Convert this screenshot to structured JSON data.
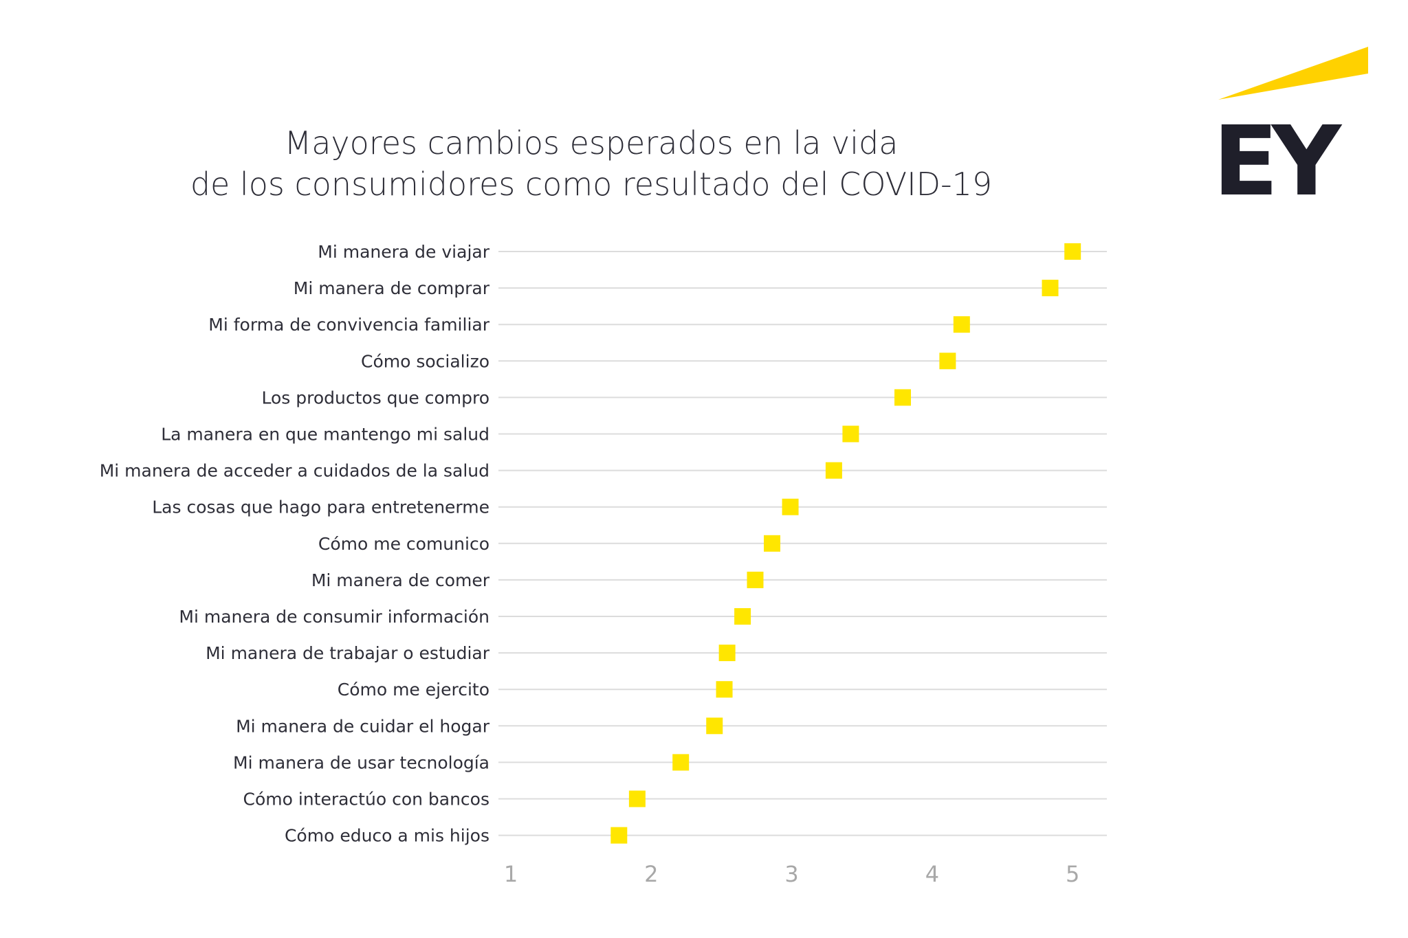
{
  "logo_text": "EY",
  "colors": {
    "marker": "#FFE600",
    "logo_beam": "#FFD100",
    "logo_text": "#1F1F2A",
    "grid": "#DCDCDC",
    "tick": "#A8A8A8",
    "text": "#2E2E38"
  },
  "chart_data": {
    "type": "scatter",
    "title": [
      "Mayores cambios esperados en la vida",
      "de los consumidores como resultado del COVID-19"
    ],
    "xlabel": "",
    "ylabel": "",
    "xlim": [
      1,
      5
    ],
    "xticks": [
      "1",
      "2",
      "3",
      "4",
      "5"
    ],
    "grid": true,
    "categories": [
      "Mi manera de viajar",
      "Mi manera de comprar",
      "Mi forma de convivencia familiar",
      "Cómo socializo",
      "Los productos que compro",
      "La manera en que mantengo mi salud",
      "Mi manera de acceder a cuidados de la salud",
      "Las cosas que hago para entretenerme",
      "Cómo me comunico",
      "Mi manera de comer",
      "Mi manera de consumir información",
      "Mi manera de trabajar o estudiar",
      "Cómo me ejercito",
      "Mi manera de cuidar el hogar",
      "Mi manera de usar tecnología",
      "Cómo interactúo con bancos",
      "Cómo educo a mis hijos"
    ],
    "values": [
      5.0,
      4.84,
      4.21,
      4.11,
      3.79,
      3.42,
      3.3,
      2.99,
      2.86,
      2.74,
      2.65,
      2.54,
      2.52,
      2.45,
      2.21,
      1.9,
      1.77
    ]
  }
}
